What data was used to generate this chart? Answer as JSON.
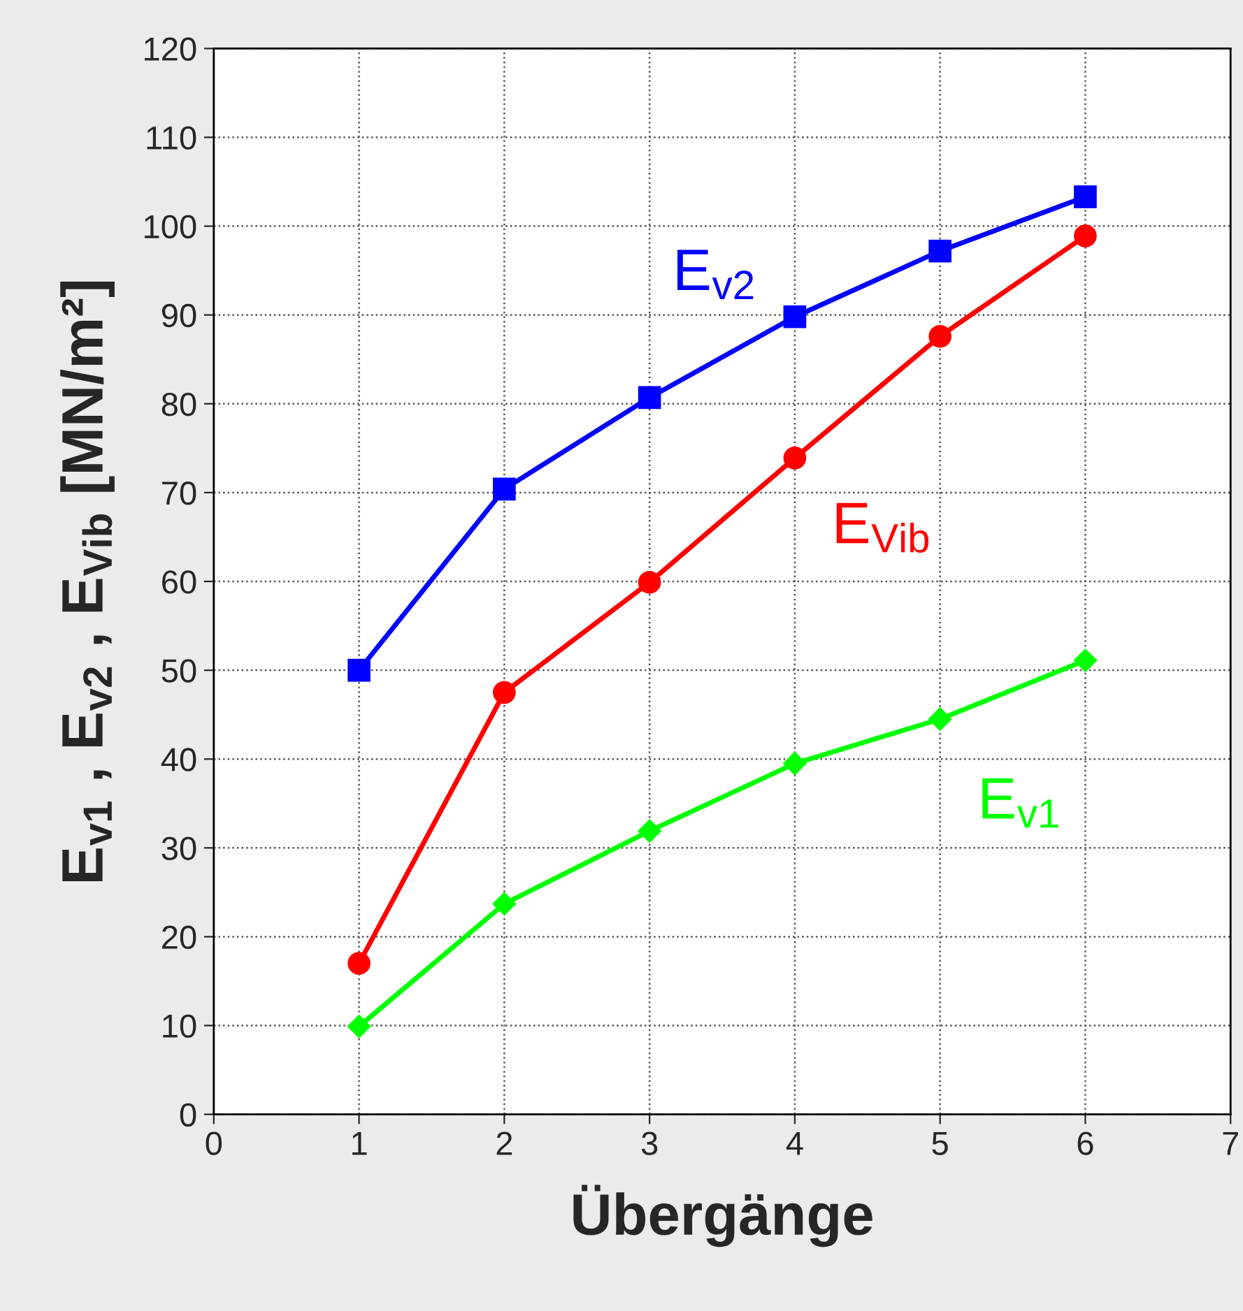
{
  "chart_data": {
    "type": "line",
    "xlabel": "Übergänge",
    "ylabel": "E$_{v1}$ , E$_{v2}$ , E$_{Vib}$ [MN/m²]",
    "x": [
      1,
      2,
      3,
      4,
      5,
      6
    ],
    "series": [
      {
        "name": "E$_{v2}$",
        "color": "#0000ff",
        "marker": "square",
        "values": [
          50,
          70.4,
          80.7,
          89.8,
          97.2,
          103.3
        ]
      },
      {
        "name": "E$_{Vib}$",
        "color": "#ff0000",
        "marker": "circle",
        "values": [
          17,
          47.5,
          59.9,
          73.9,
          87.6,
          98.9
        ]
      },
      {
        "name": "E$_{v1}$",
        "color": "#00ff00",
        "marker": "diamond",
        "values": [
          9.9,
          23.7,
          31.9,
          39.5,
          44.5,
          51.1
        ]
      }
    ],
    "xlim": [
      0,
      7
    ],
    "xticks": [
      0,
      1,
      2,
      3,
      4,
      5,
      6,
      7
    ],
    "ylim": [
      0,
      120
    ],
    "yticks": [
      0,
      10,
      20,
      30,
      40,
      50,
      60,
      70,
      80,
      90,
      100,
      110,
      120
    ],
    "grid": true,
    "line_style": "solid"
  }
}
